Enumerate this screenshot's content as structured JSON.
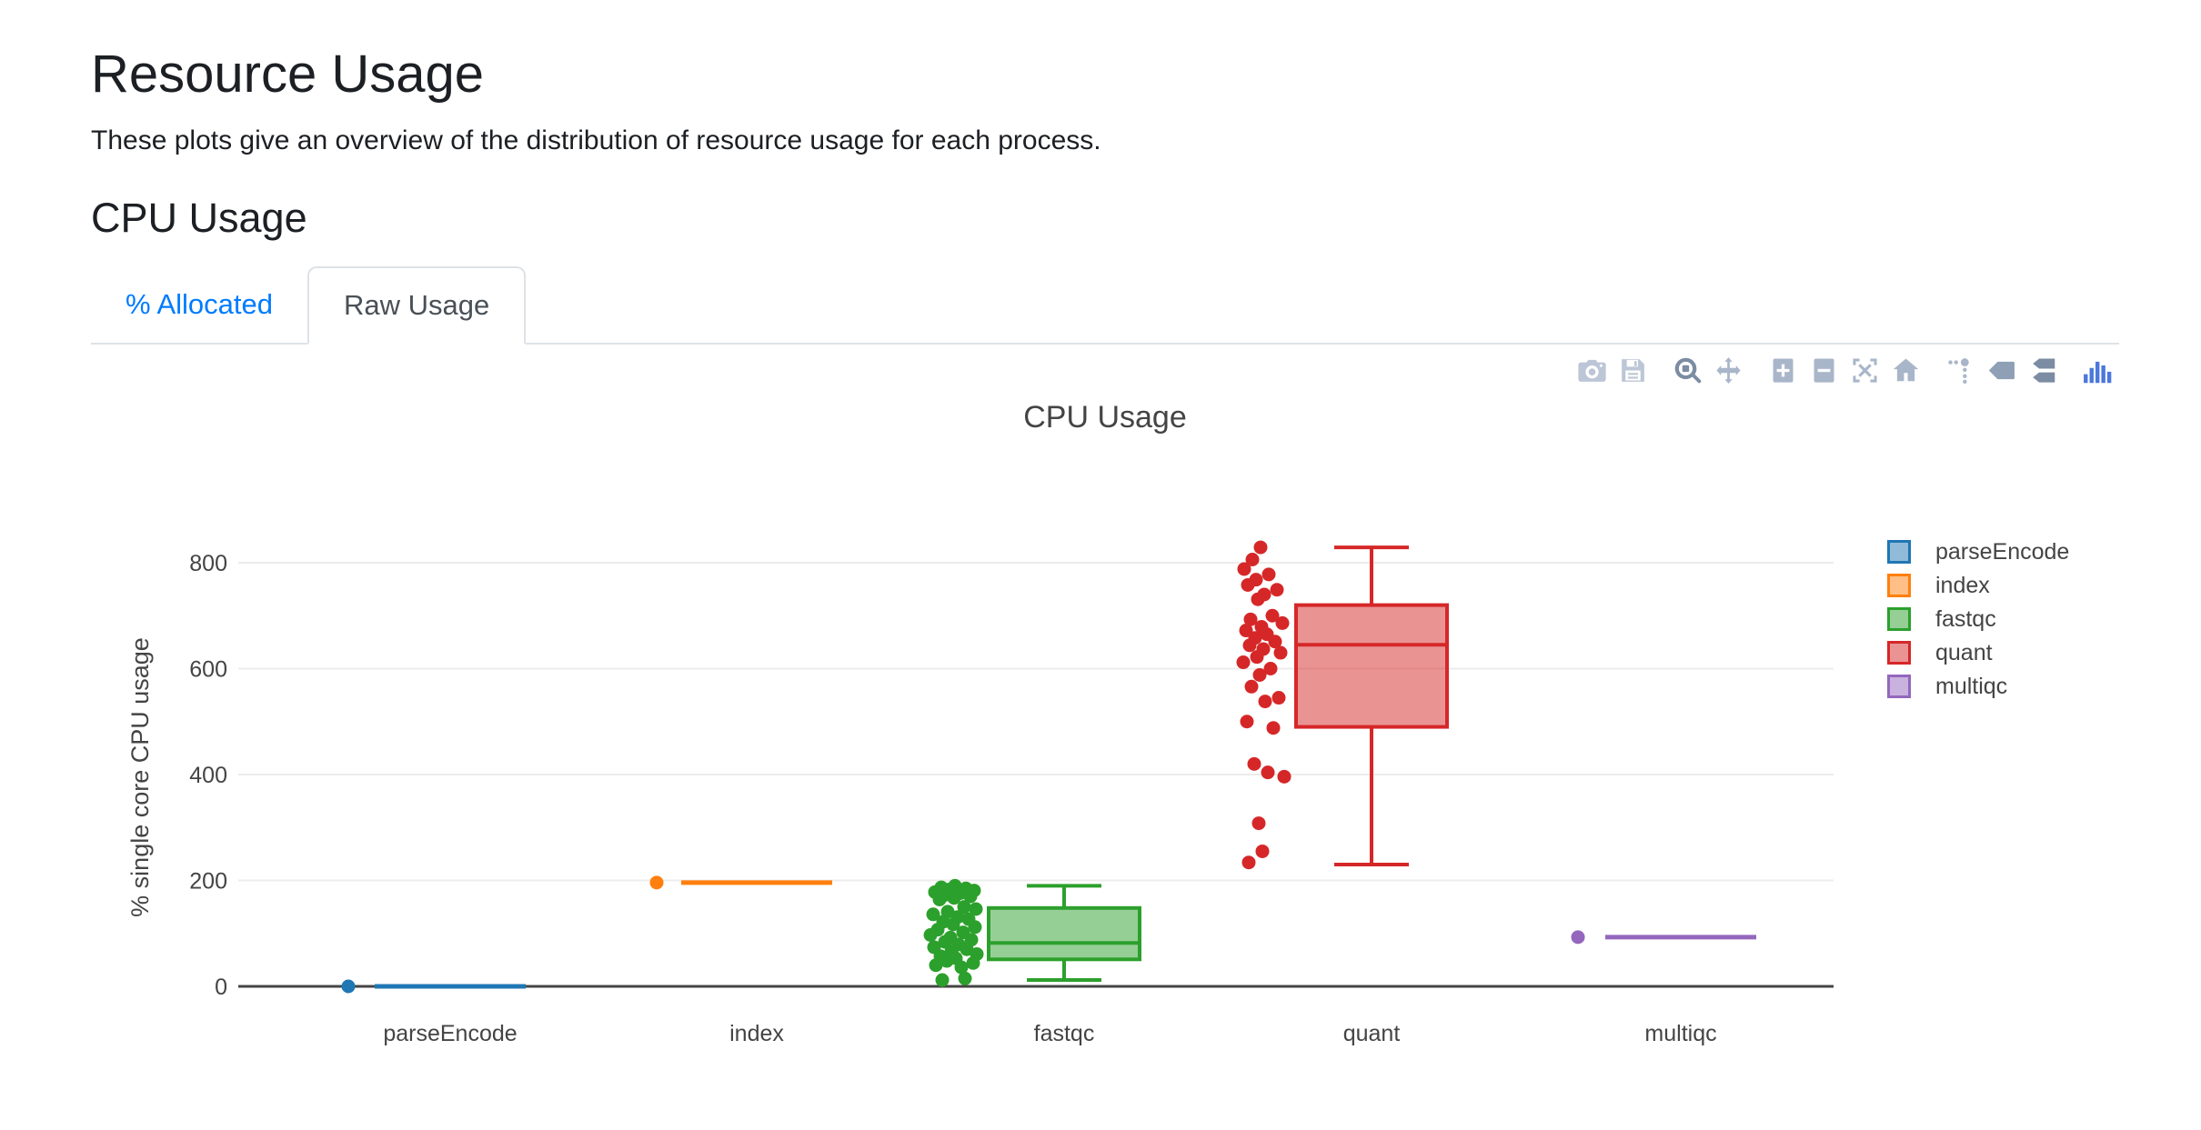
{
  "page": {
    "title": "Resource Usage",
    "subtitle": "These plots give an overview of the distribution of resource usage for each process.",
    "section_heading": "CPU Usage",
    "tabs": [
      {
        "label": "% Allocated",
        "active": false
      },
      {
        "label": "Raw Usage",
        "active": true
      }
    ]
  },
  "colors": {
    "link_blue": "#007bff",
    "tab_border": "#dee2e6",
    "tab_active_text": "#495057",
    "axis_text": "#444444",
    "gridline": "#ececec",
    "zeroline": "#444444",
    "modebar_inactive": "#a9b6c9",
    "modebar_active": "#7b8ca3",
    "plotly_logo_blue": "#4c78dd"
  },
  "modebar": {
    "icons": [
      {
        "name": "camera-icon",
        "state": "light"
      },
      {
        "name": "save-icon",
        "state": "light"
      },
      {
        "name": "zoom-icon",
        "state": "active"
      },
      {
        "name": "pan-icon",
        "state": "default"
      },
      {
        "name": "zoom-in-icon",
        "state": "default"
      },
      {
        "name": "zoom-out-icon",
        "state": "default"
      },
      {
        "name": "autoscale-icon",
        "state": "default"
      },
      {
        "name": "reset-axes-icon",
        "state": "default"
      },
      {
        "name": "spikelines-icon",
        "state": "default"
      },
      {
        "name": "hover-closest-icon",
        "state": "mid"
      },
      {
        "name": "hover-compare-icon",
        "state": "active"
      },
      {
        "name": "plotly-logo-icon",
        "state": "logo"
      }
    ]
  },
  "chart_data": {
    "type": "box",
    "title": "CPU Usage",
    "xlabel": "",
    "ylabel": "% single core CPU usage",
    "yticks": [
      0,
      200,
      400,
      600,
      800
    ],
    "ylim": [
      0,
      900
    ],
    "grid": true,
    "legend_position": "right",
    "categories": [
      "parseEncode",
      "index",
      "fastqc",
      "quant",
      "multiqc"
    ],
    "series": [
      {
        "name": "parseEncode",
        "color": "#1f77b4",
        "fill": "rgba(31,119,180,0.5)",
        "box": {
          "min": 0,
          "q1": 0,
          "median": 0,
          "q3": 0,
          "max": 0
        },
        "points": [
          [
            -112,
            0
          ]
        ]
      },
      {
        "name": "index",
        "color": "#ff7f0e",
        "fill": "rgba(255,127,14,0.5)",
        "box": {
          "min": 196,
          "q1": 196,
          "median": 196,
          "q3": 196,
          "max": 196
        },
        "points": [
          [
            -110,
            196
          ]
        ]
      },
      {
        "name": "fastqc",
        "color": "#2ca02c",
        "fill": "rgba(44,160,44,0.5)",
        "box": {
          "min": 12,
          "q1": 51,
          "median": 82,
          "q3": 148,
          "max": 190
        },
        "points": [
          [
            -120,
            190
          ],
          [
            -135,
            187
          ],
          [
            -108,
            185
          ],
          [
            -126,
            183
          ],
          [
            -99,
            181
          ],
          [
            -142,
            178
          ],
          [
            -114,
            176
          ],
          [
            -130,
            173
          ],
          [
            -103,
            170
          ],
          [
            -121,
            167
          ],
          [
            -137,
            164
          ],
          [
            -110,
            150
          ],
          [
            -97,
            146
          ],
          [
            -128,
            141
          ],
          [
            -144,
            136
          ],
          [
            -117,
            131
          ],
          [
            -105,
            127
          ],
          [
            -133,
            122
          ],
          [
            -122,
            117
          ],
          [
            -98,
            112
          ],
          [
            -139,
            107
          ],
          [
            -111,
            102
          ],
          [
            -147,
            97
          ],
          [
            -125,
            92
          ],
          [
            -102,
            88
          ],
          [
            -131,
            84
          ],
          [
            -116,
            79
          ],
          [
            -143,
            74
          ],
          [
            -107,
            70
          ],
          [
            -124,
            66
          ],
          [
            -96,
            61
          ],
          [
            -136,
            57
          ],
          [
            -119,
            53
          ],
          [
            -129,
            48
          ],
          [
            -100,
            44
          ],
          [
            -141,
            40
          ],
          [
            -113,
            36
          ],
          [
            -109,
            15
          ],
          [
            -134,
            12
          ]
        ]
      },
      {
        "name": "quant",
        "color": "#d62728",
        "fill": "rgba(214,39,40,0.5)",
        "box": {
          "min": 230,
          "q1": 490,
          "median": 645,
          "q3": 720,
          "max": 829
        },
        "points": [
          [
            -122,
            829
          ],
          [
            -131,
            806
          ],
          [
            -140,
            788
          ],
          [
            -113,
            778
          ],
          [
            -127,
            768
          ],
          [
            -136,
            758
          ],
          [
            -104,
            749
          ],
          [
            -118,
            740
          ],
          [
            -125,
            731
          ],
          [
            -109,
            700
          ],
          [
            -133,
            693
          ],
          [
            -98,
            686
          ],
          [
            -121,
            679
          ],
          [
            -138,
            672
          ],
          [
            -115,
            665
          ],
          [
            -128,
            658
          ],
          [
            -106,
            651
          ],
          [
            -134,
            644
          ],
          [
            -119,
            637
          ],
          [
            -100,
            630
          ],
          [
            -126,
            622
          ],
          [
            -141,
            612
          ],
          [
            -111,
            600
          ],
          [
            -123,
            588
          ],
          [
            -132,
            566
          ],
          [
            -102,
            545
          ],
          [
            -117,
            538
          ],
          [
            -137,
            500
          ],
          [
            -108,
            488
          ],
          [
            -129,
            420
          ],
          [
            -114,
            404
          ],
          [
            -96,
            396
          ],
          [
            -124,
            308
          ],
          [
            -120,
            255
          ],
          [
            -135,
            234
          ]
        ]
      },
      {
        "name": "multiqc",
        "color": "#9467bd",
        "fill": "rgba(148,103,189,0.5)",
        "box": {
          "min": 93,
          "q1": 93,
          "median": 93,
          "q3": 93,
          "max": 93
        },
        "points": [
          [
            -113,
            93
          ]
        ]
      }
    ]
  }
}
